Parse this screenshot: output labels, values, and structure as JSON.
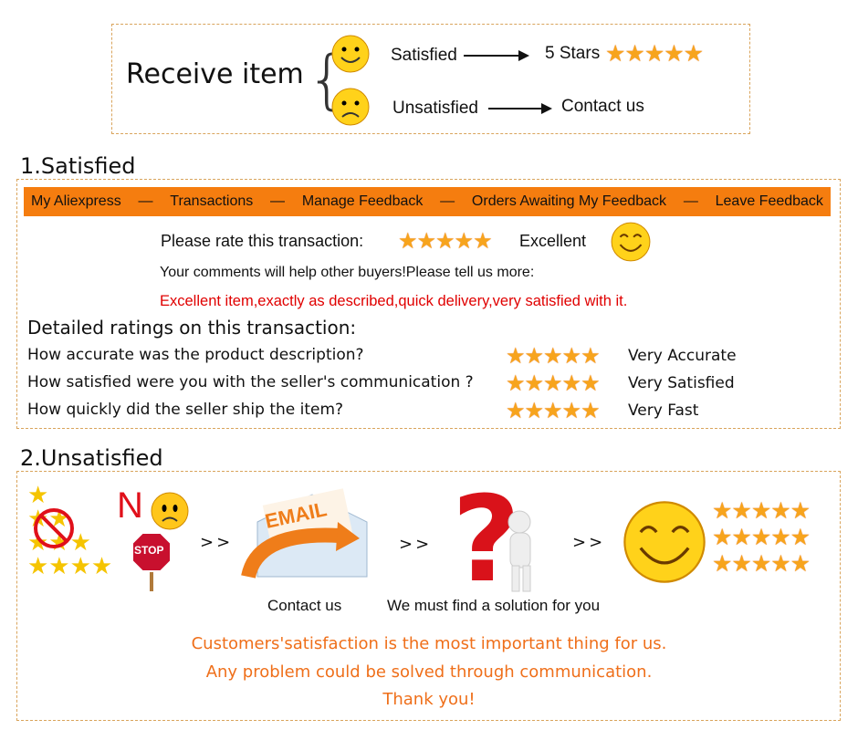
{
  "top": {
    "receive": "Receive item",
    "satisfied": "Satisfied",
    "five_stars": "5 Stars",
    "unsatisfied": "Unsatisfied",
    "contact": "Contact us",
    "star_color": "#f7a41d"
  },
  "section1": {
    "title": "1.Satisfied",
    "nav": [
      "My Aliexpress",
      "—",
      "Transactions",
      "—",
      "Manage Feedback",
      "—",
      "Orders Awaiting My Feedback",
      "—",
      "Leave Feedback"
    ],
    "nav_color": "#f57d0f",
    "rate_label": "Please rate this transaction:",
    "rate_value": "Excellent",
    "rating": 5,
    "comments": "Your comments will help other buyers!Please tell us more:",
    "example": "Excellent item,exactly as described,quick delivery,very satisfied with it.",
    "example_color": "#e00000",
    "detail_title": "Detailed ratings on this transaction:",
    "details": [
      {
        "q": "How accurate was the product description?",
        "a": "Very Accurate",
        "stars": 5
      },
      {
        "q": "How satisfied were you with the seller's communication ?",
        "a": "Very Satisfied",
        "stars": 5
      },
      {
        "q": "How quickly did the seller ship the item?",
        "a": "Very Fast",
        "stars": 5
      }
    ]
  },
  "section2": {
    "title": "2.Unsatisfied",
    "no": "N",
    "stop": "STOP",
    "email": "EMAIL",
    "sep": ">>",
    "contact": "Contact us",
    "solution": "We must find a solution for you",
    "messages": [
      "Customers'satisfaction is the most important thing for us.",
      "Any problem could be solved through communication.",
      "Thank you!"
    ],
    "message_color": "#ef6f1a"
  }
}
